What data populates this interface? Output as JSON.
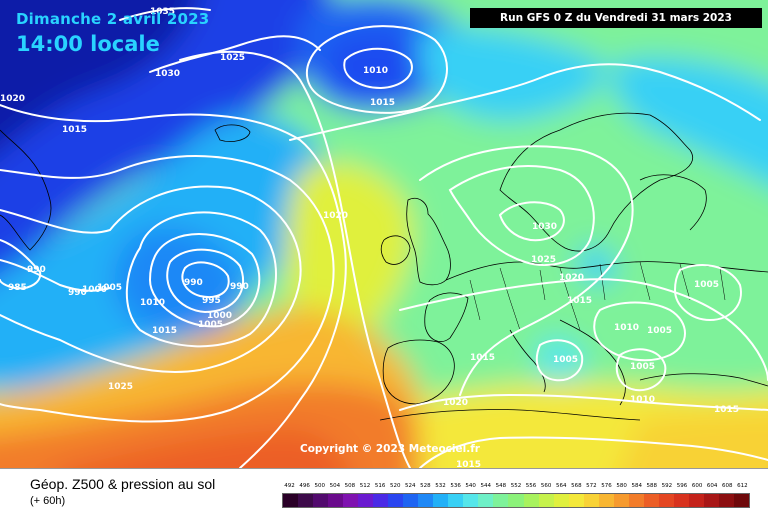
{
  "header": {
    "date": "Dimanche 2 avril 2023",
    "time": "14:00 locale",
    "run": "Run GFS 0 Z du Vendredi 31 mars 2023"
  },
  "copyright": "Copyright © 2023 Meteociel.fr",
  "footer": {
    "title": "Géop. Z500 & pression au sol",
    "subtitle": "(+ 60h)"
  },
  "isobar_labels": [
    {
      "text": "1035"
    },
    {
      "text": "1025"
    },
    {
      "text": "1030"
    },
    {
      "text": "1020"
    },
    {
      "text": "1015"
    },
    {
      "text": "1010"
    },
    {
      "text": "1015"
    },
    {
      "text": "1020"
    },
    {
      "text": "990"
    },
    {
      "text": "985"
    },
    {
      "text": "990"
    },
    {
      "text": "1000"
    },
    {
      "text": "1005"
    },
    {
      "text": "990"
    },
    {
      "text": "990"
    },
    {
      "text": "995"
    },
    {
      "text": "1000"
    },
    {
      "text": "1005"
    },
    {
      "text": "1010"
    },
    {
      "text": "1015"
    },
    {
      "text": "1025"
    },
    {
      "text": "1030"
    },
    {
      "text": "1025"
    },
    {
      "text": "1020"
    },
    {
      "text": "1015"
    },
    {
      "text": "1005"
    },
    {
      "text": "1010"
    },
    {
      "text": "1005"
    },
    {
      "text": "1005"
    },
    {
      "text": "1005"
    },
    {
      "text": "1010"
    },
    {
      "text": "1015"
    },
    {
      "text": "1020"
    },
    {
      "text": "1015"
    },
    {
      "text": "1015"
    }
  ],
  "scale": {
    "labels": [
      "492",
      "496",
      "500",
      "504",
      "508",
      "512",
      "516",
      "520",
      "524",
      "528",
      "532",
      "536",
      "540",
      "544",
      "548",
      "552",
      "556",
      "560",
      "564",
      "568",
      "572",
      "576",
      "580",
      "584",
      "588",
      "592",
      "596",
      "600",
      "604",
      "608",
      "612"
    ],
    "colors": [
      "#2a0027",
      "#3d0a4a",
      "#520a6e",
      "#6a0a8c",
      "#7f12b0",
      "#6a1ad0",
      "#4a2ae6",
      "#2a45f0",
      "#1e64f2",
      "#1f88f6",
      "#22b0f7",
      "#38d0f5",
      "#55e6ea",
      "#6ef0c7",
      "#7ef29a",
      "#8cf27a",
      "#a8f25e",
      "#c6f24c",
      "#e0f03e",
      "#f4e83a",
      "#f8d236",
      "#f8b632",
      "#f69a2e",
      "#f27c2a",
      "#ec5e26",
      "#e44622",
      "#d8321e",
      "#c4221a",
      "#a81616",
      "#8c0e10",
      "#6e080a"
    ]
  }
}
